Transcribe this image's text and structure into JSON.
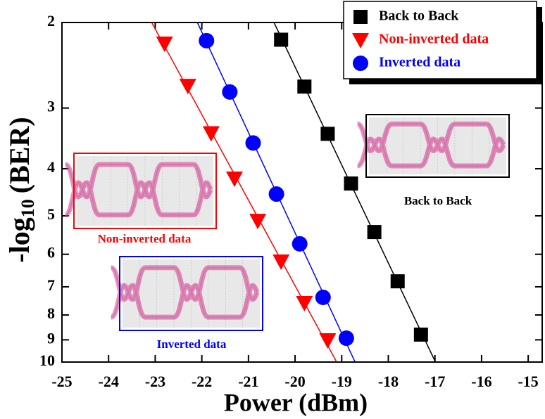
{
  "chart_data": {
    "type": "scatter",
    "xlabel": "Power (dBm)",
    "ylabel": {
      "text": "-log",
      "subscript": "10",
      "suffix": "(BER)"
    },
    "xlim": [
      -25,
      -14.7
    ],
    "xticks": [
      -25,
      -24,
      -23,
      -22,
      -21,
      -20,
      -19,
      -18,
      -17,
      -16,
      -15
    ],
    "ylim": [
      2,
      10
    ],
    "yticks": [
      2,
      3,
      4,
      5,
      6,
      7,
      8,
      9,
      10
    ],
    "y_log": true,
    "y_reversed": true,
    "legend": "top-right",
    "fit_lines": true,
    "series": [
      {
        "name": "Back to Back",
        "color": "#000000",
        "marker": "square",
        "x": [
          -20.3,
          -19.8,
          -19.3,
          -18.8,
          -18.3,
          -17.8,
          -17.3
        ],
        "values": [
          2.17,
          2.71,
          3.39,
          4.29,
          5.4,
          6.82,
          8.78
        ]
      },
      {
        "name": "Non-inverted data",
        "color": "#ff0000",
        "marker": "triangle",
        "x": [
          -22.8,
          -22.3,
          -21.8,
          -21.3,
          -20.8,
          -20.3,
          -19.8,
          -19.3
        ],
        "values": [
          2.21,
          2.7,
          3.38,
          4.19,
          5.12,
          6.21,
          7.56,
          9.02
        ]
      },
      {
        "name": "Inverted data",
        "color": "#0000ff",
        "marker": "circle",
        "x": [
          -21.9,
          -21.4,
          -20.9,
          -20.4,
          -19.9,
          -19.4,
          -18.9
        ],
        "values": [
          2.18,
          2.78,
          3.54,
          4.51,
          5.71,
          7.36,
          8.93
        ]
      }
    ],
    "insets": [
      {
        "label": "Non-inverted data",
        "color": "#ff0000"
      },
      {
        "label": "Inverted data",
        "color": "#0000ff"
      },
      {
        "label": "Back to Back",
        "color": "#000000"
      }
    ]
  }
}
